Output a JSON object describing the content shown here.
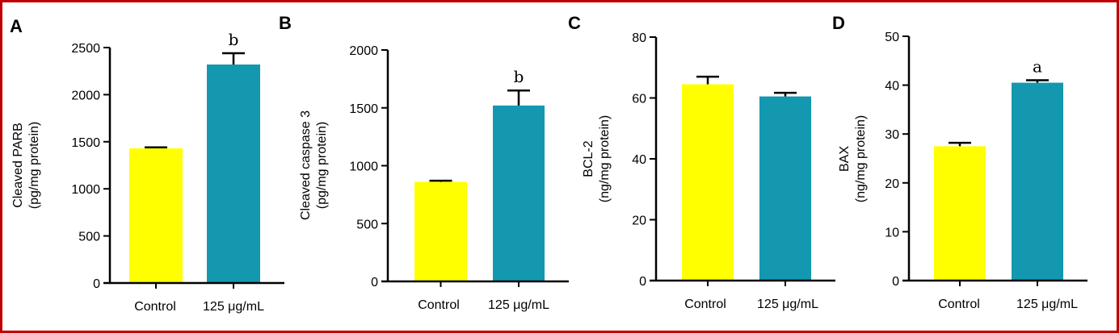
{
  "colors": {
    "frame": "#c00000",
    "control": "#ffff00",
    "treated": "#1398b0",
    "axis": "#000000"
  },
  "chart_data": [
    {
      "type": "bar",
      "panel_label": "A",
      "ylabel": [
        "Cleaved PARB",
        "(pg/mg protein)"
      ],
      "categories": [
        "Control",
        "125 μg/mL"
      ],
      "values": [
        1430,
        2320
      ],
      "errors": [
        10,
        120
      ],
      "significance": [
        "",
        "b"
      ],
      "ylim": [
        0,
        2500
      ],
      "yticks": [
        0,
        500,
        1000,
        1500,
        2000,
        2500
      ]
    },
    {
      "type": "bar",
      "panel_label": "B",
      "ylabel": [
        "Cleaved caspase 3",
        "(pg/mg protein)"
      ],
      "categories": [
        "Control",
        "125 μg/mL"
      ],
      "values": [
        860,
        1520
      ],
      "errors": [
        10,
        130
      ],
      "significance": [
        "",
        "b"
      ],
      "ylim": [
        0,
        2000
      ],
      "yticks": [
        0,
        500,
        1000,
        1500,
        2000
      ]
    },
    {
      "type": "bar",
      "panel_label": "C",
      "ylabel": [
        "BCL-2",
        "(ng/mg protein)"
      ],
      "categories": [
        "Control",
        "125 μg/mL"
      ],
      "values": [
        64.5,
        60.5
      ],
      "errors": [
        2.5,
        1.2
      ],
      "significance": [
        "",
        ""
      ],
      "ylim": [
        0,
        80
      ],
      "yticks": [
        0,
        20,
        40,
        60,
        80
      ]
    },
    {
      "type": "bar",
      "panel_label": "D",
      "ylabel": [
        "BAX",
        "(ng/mg protein)"
      ],
      "categories": [
        "Control",
        "125 μg/mL"
      ],
      "values": [
        27.5,
        40.5
      ],
      "errors": [
        0.7,
        0.5
      ],
      "significance": [
        "",
        "a"
      ],
      "ylim": [
        0,
        50
      ],
      "yticks": [
        0,
        10,
        20,
        30,
        40,
        50
      ]
    }
  ]
}
